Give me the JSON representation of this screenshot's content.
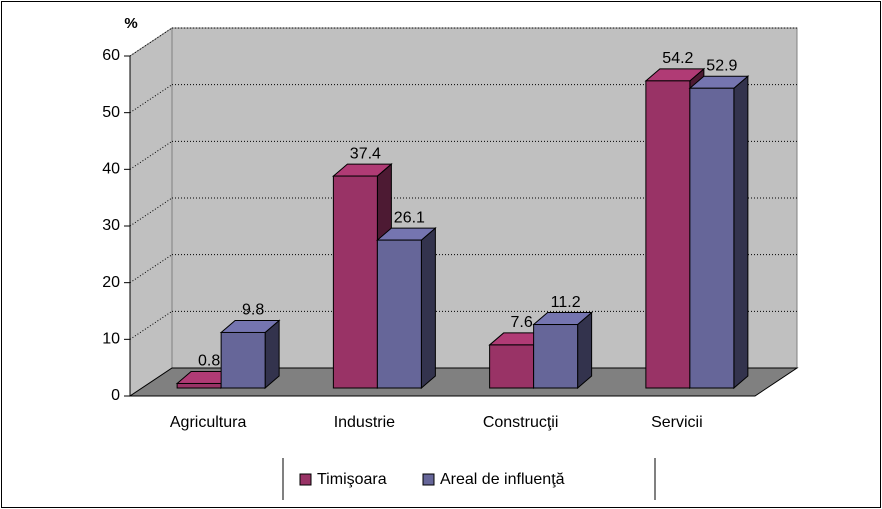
{
  "chart_data": {
    "type": "bar3d",
    "y_label": "%",
    "categories": [
      "Agricultura",
      "Industrie",
      "Construcţii",
      "Servicii"
    ],
    "series": [
      {
        "name": "Timişoara",
        "color": "#993366",
        "values": [
          0.8,
          37.4,
          7.6,
          54.2
        ]
      },
      {
        "name": "Areal de influenţă",
        "color": "#666699",
        "values": [
          9.8,
          26.1,
          11.2,
          52.9
        ]
      }
    ],
    "ylim": [
      0,
      60
    ],
    "yticks": [
      0,
      10,
      20,
      30,
      40,
      50,
      60
    ],
    "grid": true,
    "legend": "bottom"
  }
}
